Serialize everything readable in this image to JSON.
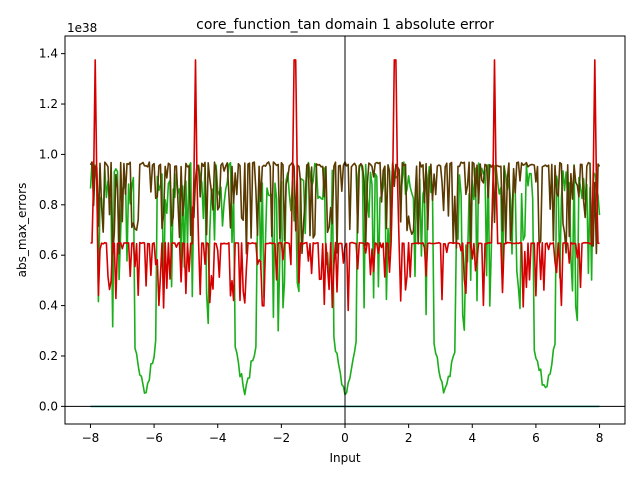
{
  "chart_data": {
    "type": "line",
    "title": "core_function_tan domain 1 absolute error",
    "xlabel": "Input",
    "ylabel": "abs_max_errors",
    "scale_label": "1e38",
    "xlim": [
      -8.8,
      8.8
    ],
    "ylim": [
      -0.07,
      1.47
    ],
    "xticks": [
      -8,
      -6,
      -4,
      -2,
      0,
      2,
      4,
      6,
      8
    ],
    "xtick_labels": [
      "−8",
      "−6",
      "−4",
      "−2",
      "0",
      "2",
      "4",
      "6",
      "8"
    ],
    "yticks": [
      0.0,
      0.2,
      0.4,
      0.6,
      0.8,
      1.0,
      1.2,
      1.4
    ],
    "ytick_labels": [
      "0.0",
      "0.2",
      "0.4",
      "0.6",
      "0.8",
      "1.0",
      "1.2",
      "1.4"
    ],
    "reference_lines": {
      "x": 0,
      "y": 0,
      "color": "#000000"
    },
    "series_style": [
      {
        "color": "#1aaf1a",
        "shape": "green"
      },
      {
        "color": "#5a3a00",
        "shape": "brown"
      },
      {
        "color": "#d40000",
        "shape": "red"
      },
      {
        "color": "#17a589",
        "shape": "flat"
      }
    ],
    "x_range": [
      -8,
      8
    ],
    "points": 321
  }
}
